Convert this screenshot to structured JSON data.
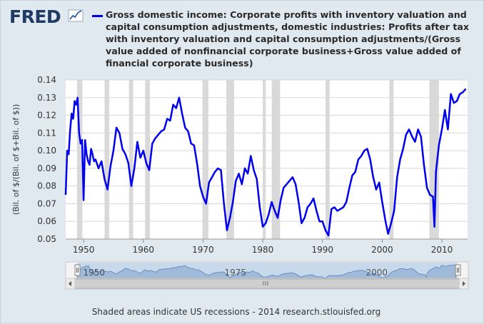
{
  "logo": "FRED",
  "footer_text": "Shaded areas indicate US recessions - 2014 research.stlouisfed.org",
  "colors": {
    "series": "#0000ee",
    "recession": "#d9d9d9",
    "background": "#e1e9f0",
    "navigator_fill": "#9fbbd9"
  },
  "chart_data": {
    "type": "line",
    "title": "Gross domestic income: Corporate profits with inventory valuation and capital consumption adjustments, domestic industries: Profits after tax with inventory valuation and capital consumption adjustments/(Gross value added of nonfinancial corporate business+Gross value added of financial corporate business)",
    "ylabel": "(Bil. of $/(Bil. of $+Bil. of $))",
    "xlabel": "",
    "xlim": [
      1947,
      2014.3
    ],
    "ylim": [
      0.05,
      0.14
    ],
    "x_ticks": [
      "1950",
      "1960",
      "1970",
      "1980",
      "1990",
      "2000",
      "2010"
    ],
    "x_tick_values": [
      1950,
      1960,
      1970,
      1980,
      1990,
      2000,
      2010
    ],
    "y_ticks": [
      "0.05",
      "0.06",
      "0.07",
      "0.08",
      "0.09",
      "0.10",
      "0.11",
      "0.12",
      "0.13",
      "0.14"
    ],
    "y_tick_values": [
      0.05,
      0.06,
      0.07,
      0.08,
      0.09,
      0.1,
      0.11,
      0.12,
      0.13,
      0.14
    ],
    "grid": "horizontal",
    "recessions": [
      [
        1948.9,
        1949.8
      ],
      [
        1953.5,
        1954.3
      ],
      [
        1957.6,
        1958.3
      ],
      [
        1960.3,
        1961.1
      ],
      [
        1969.9,
        1970.9
      ],
      [
        1973.9,
        1975.2
      ],
      [
        1980.0,
        1980.5
      ],
      [
        1981.5,
        1982.9
      ],
      [
        1990.5,
        1991.2
      ],
      [
        2001.2,
        2001.9
      ],
      [
        2007.9,
        2009.5
      ]
    ],
    "navigator_ticks": [
      "1950",
      "1975",
      "2000"
    ],
    "navigator_tick_values": [
      1950,
      1975,
      2000
    ],
    "series": [
      {
        "name": "",
        "x": [
          1947.0,
          1947.25,
          1947.5,
          1947.75,
          1948.0,
          1948.25,
          1948.5,
          1948.75,
          1949.0,
          1949.25,
          1949.5,
          1949.75,
          1950.0,
          1950.25,
          1950.5,
          1950.75,
          1951.0,
          1951.25,
          1951.5,
          1951.75,
          1952.0,
          1952.5,
          1953.0,
          1953.5,
          1954.0,
          1954.5,
          1955.0,
          1955.5,
          1956.0,
          1956.5,
          1957.0,
          1957.5,
          1958.0,
          1958.5,
          1959.0,
          1959.5,
          1960.0,
          1960.5,
          1961.0,
          1961.5,
          1962.0,
          1962.5,
          1963.0,
          1963.5,
          1964.0,
          1964.5,
          1965.0,
          1965.5,
          1966.0,
          1966.5,
          1967.0,
          1967.5,
          1968.0,
          1968.5,
          1969.0,
          1969.5,
          1970.0,
          1970.5,
          1971.0,
          1971.5,
          1972.0,
          1972.5,
          1973.0,
          1973.5,
          1974.0,
          1974.5,
          1975.0,
          1975.5,
          1976.0,
          1976.5,
          1977.0,
          1977.5,
          1978.0,
          1978.5,
          1979.0,
          1979.5,
          1980.0,
          1980.5,
          1981.0,
          1981.5,
          1982.0,
          1982.5,
          1983.0,
          1983.5,
          1984.0,
          1984.5,
          1985.0,
          1985.5,
          1986.0,
          1986.5,
          1987.0,
          1987.5,
          1988.0,
          1988.5,
          1989.0,
          1989.5,
          1990.0,
          1990.5,
          1991.0,
          1991.5,
          1992.0,
          1992.5,
          1993.0,
          1993.5,
          1994.0,
          1994.5,
          1995.0,
          1995.5,
          1996.0,
          1996.5,
          1997.0,
          1997.5,
          1998.0,
          1998.5,
          1999.0,
          1999.5,
          2000.0,
          2000.5,
          2001.0,
          2001.5,
          2002.0,
          2002.5,
          2003.0,
          2003.5,
          2004.0,
          2004.5,
          2005.0,
          2005.5,
          2006.0,
          2006.5,
          2007.0,
          2007.5,
          2008.0,
          2008.5,
          2008.75,
          2009.0,
          2009.5,
          2010.0,
          2010.5,
          2011.0,
          2011.5,
          2012.0,
          2012.5,
          2013.0,
          2013.5,
          2014.0
        ],
        "y": [
          0.075,
          0.1,
          0.098,
          0.112,
          0.121,
          0.118,
          0.128,
          0.126,
          0.13,
          0.11,
          0.104,
          0.106,
          0.072,
          0.106,
          0.098,
          0.094,
          0.092,
          0.101,
          0.098,
          0.094,
          0.095,
          0.09,
          0.094,
          0.084,
          0.078,
          0.091,
          0.1,
          0.113,
          0.11,
          0.101,
          0.098,
          0.093,
          0.08,
          0.09,
          0.105,
          0.096,
          0.1,
          0.093,
          0.089,
          0.104,
          0.107,
          0.109,
          0.111,
          0.112,
          0.118,
          0.117,
          0.126,
          0.124,
          0.13,
          0.121,
          0.113,
          0.111,
          0.104,
          0.103,
          0.093,
          0.08,
          0.074,
          0.07,
          0.082,
          0.085,
          0.088,
          0.09,
          0.089,
          0.07,
          0.055,
          0.062,
          0.071,
          0.083,
          0.087,
          0.081,
          0.09,
          0.087,
          0.097,
          0.089,
          0.084,
          0.068,
          0.057,
          0.059,
          0.064,
          0.071,
          0.066,
          0.062,
          0.072,
          0.079,
          0.081,
          0.083,
          0.085,
          0.081,
          0.071,
          0.059,
          0.062,
          0.068,
          0.07,
          0.073,
          0.066,
          0.06,
          0.06,
          0.055,
          0.052,
          0.067,
          0.068,
          0.066,
          0.067,
          0.068,
          0.071,
          0.079,
          0.086,
          0.088,
          0.095,
          0.097,
          0.1,
          0.101,
          0.095,
          0.085,
          0.078,
          0.082,
          0.071,
          0.061,
          0.053,
          0.059,
          0.066,
          0.085,
          0.095,
          0.101,
          0.109,
          0.112,
          0.108,
          0.105,
          0.112,
          0.108,
          0.092,
          0.079,
          0.075,
          0.074,
          0.057,
          0.088,
          0.103,
          0.112,
          0.123,
          0.112,
          0.132,
          0.127,
          0.128,
          0.132,
          0.133,
          0.135
        ]
      }
    ]
  }
}
